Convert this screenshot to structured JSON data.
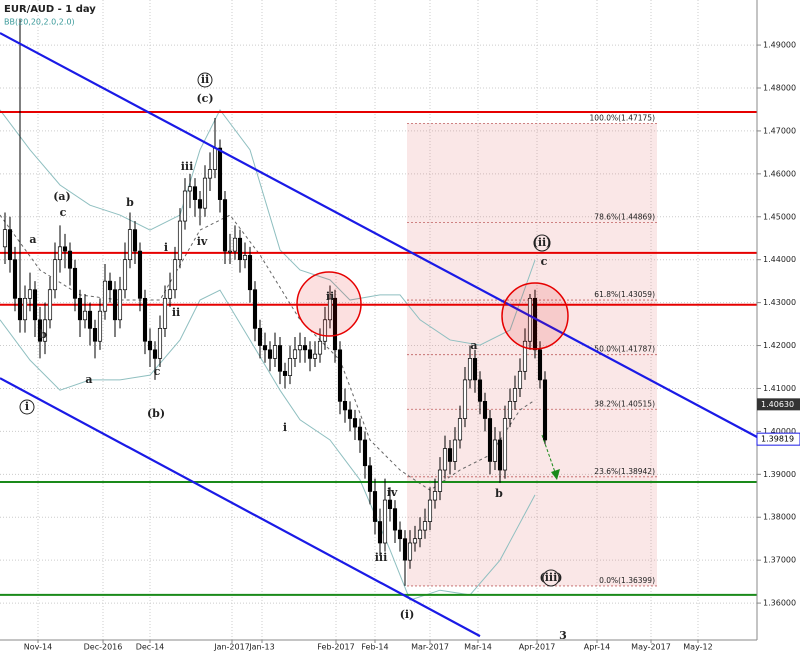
{
  "chart_data": {
    "type": "candlestick",
    "title": "EUR/AUD - 1 day",
    "subtitle": "BB(20,20,2.0,2.0)",
    "xlim": [
      0,
      151.4
    ],
    "ylim": [
      1.3514,
      1.5005
    ],
    "yticks": [
      {
        "value": 1.49,
        "label": "1.49000"
      },
      {
        "value": 1.48,
        "label": "1.48000"
      },
      {
        "value": 1.47,
        "label": "1.47000"
      },
      {
        "value": 1.46,
        "label": "1.46000"
      },
      {
        "value": 1.45,
        "label": "1.45000"
      },
      {
        "value": 1.44,
        "label": "1.44000"
      },
      {
        "value": 1.43,
        "label": "1.43000"
      },
      {
        "value": 1.42,
        "label": "1.42000"
      },
      {
        "value": 1.41,
        "label": "1.41000"
      },
      {
        "value": 1.4,
        "label": "1.40000"
      },
      {
        "value": 1.39,
        "label": "1.39000"
      },
      {
        "value": 1.38,
        "label": "1.38000"
      },
      {
        "value": 1.37,
        "label": "1.37000"
      },
      {
        "value": 1.36,
        "label": "1.36000"
      }
    ],
    "xticks": [
      {
        "value": 7.6,
        "label": "Nov-14"
      },
      {
        "value": 20.6,
        "label": "Dec-2016"
      },
      {
        "value": 30,
        "label": "Dec-14"
      },
      {
        "value": 46.4,
        "label": "Jan-2017"
      },
      {
        "value": 52.4,
        "label": "Jan-13"
      },
      {
        "value": 67.2,
        "label": "Feb-2017"
      },
      {
        "value": 75,
        "label": "Feb-14"
      },
      {
        "value": 86,
        "label": "Mar-2017"
      },
      {
        "value": 95.6,
        "label": "Mar-14"
      },
      {
        "value": 107.4,
        "label": "Apr-2017"
      },
      {
        "value": 119.4,
        "label": "Apr-14"
      },
      {
        "value": 130.2,
        "label": "May-2017"
      },
      {
        "value": 139.6,
        "label": "May-12"
      }
    ],
    "grid": true,
    "series": [
      {
        "name": "EUR/AUD",
        "x": [
          1,
          2,
          3,
          4,
          5,
          6,
          7,
          8,
          9,
          10,
          11,
          12,
          13,
          14,
          15,
          16,
          17,
          18,
          19,
          20,
          21,
          22,
          23,
          24,
          25,
          26,
          27,
          28,
          29,
          30,
          31,
          32,
          33,
          34,
          35,
          36,
          37,
          38,
          39,
          40,
          41,
          42,
          43,
          44,
          45,
          46,
          47,
          48,
          49,
          50,
          51,
          52,
          53,
          54,
          55,
          56,
          57,
          58,
          59,
          60,
          61,
          62,
          63,
          64,
          65,
          66,
          67,
          68,
          69,
          70,
          71,
          72,
          73,
          74,
          75,
          76,
          77,
          78,
          79,
          80,
          81,
          82,
          83,
          84,
          85,
          86,
          87,
          88,
          89,
          90,
          91,
          92,
          93,
          94,
          95,
          96,
          97,
          98,
          99,
          100,
          101,
          102,
          103,
          104,
          105,
          106,
          107,
          108,
          109
        ],
        "ohlc": [
          [
            1.443,
            1.451,
            1.439,
            1.447
          ],
          [
            1.447,
            1.45,
            1.437,
            1.44
          ],
          [
            1.44,
            1.443,
            1.428,
            1.431
          ],
          [
            1.431,
            1.496,
            1.423,
            1.426
          ],
          [
            1.426,
            1.434,
            1.423,
            1.431
          ],
          [
            1.431,
            1.437,
            1.428,
            1.433
          ],
          [
            1.433,
            1.435,
            1.422,
            1.426
          ],
          [
            1.426,
            1.429,
            1.417,
            1.421
          ],
          [
            1.421,
            1.43,
            1.418,
            1.426
          ],
          [
            1.426,
            1.436,
            1.424,
            1.433
          ],
          [
            1.433,
            1.444,
            1.431,
            1.44
          ],
          [
            1.44,
            1.448,
            1.437,
            1.443
          ],
          [
            1.443,
            1.446,
            1.438,
            1.442
          ],
          [
            1.442,
            1.444,
            1.434,
            1.438
          ],
          [
            1.438,
            1.44,
            1.428,
            1.431
          ],
          [
            1.431,
            1.433,
            1.422,
            1.426
          ],
          [
            1.426,
            1.432,
            1.424,
            1.428
          ],
          [
            1.428,
            1.43,
            1.42,
            1.424
          ],
          [
            1.424,
            1.426,
            1.417,
            1.421
          ],
          [
            1.421,
            1.431,
            1.419,
            1.428
          ],
          [
            1.428,
            1.439,
            1.426,
            1.435
          ],
          [
            1.435,
            1.437,
            1.43,
            1.433
          ],
          [
            1.433,
            1.435,
            1.422,
            1.426
          ],
          [
            1.426,
            1.436,
            1.424,
            1.433
          ],
          [
            1.433,
            1.444,
            1.431,
            1.44
          ],
          [
            1.44,
            1.451,
            1.438,
            1.447
          ],
          [
            1.447,
            1.449,
            1.439,
            1.442
          ],
          [
            1.442,
            1.444,
            1.428,
            1.431
          ],
          [
            1.431,
            1.433,
            1.418,
            1.421
          ],
          [
            1.421,
            1.424,
            1.415,
            1.419
          ],
          [
            1.419,
            1.421,
            1.412,
            1.417
          ],
          [
            1.417,
            1.427,
            1.415,
            1.424
          ],
          [
            1.424,
            1.434,
            1.422,
            1.431
          ],
          [
            1.431,
            1.437,
            1.429,
            1.433
          ],
          [
            1.433,
            1.443,
            1.431,
            1.44
          ],
          [
            1.44,
            1.452,
            1.438,
            1.449
          ],
          [
            1.449,
            1.459,
            1.447,
            1.456
          ],
          [
            1.456,
            1.46,
            1.452,
            1.457
          ],
          [
            1.457,
            1.459,
            1.45,
            1.454
          ],
          [
            1.454,
            1.456,
            1.448,
            1.452
          ],
          [
            1.452,
            1.462,
            1.45,
            1.459
          ],
          [
            1.459,
            1.465,
            1.456,
            1.461
          ],
          [
            1.461,
            1.473,
            1.459,
            1.466
          ],
          [
            1.466,
            1.468,
            1.451,
            1.454
          ],
          [
            1.454,
            1.456,
            1.439,
            1.442
          ],
          [
            1.442,
            1.446,
            1.439,
            1.442
          ],
          [
            1.442,
            1.448,
            1.44,
            1.445
          ],
          [
            1.445,
            1.447,
            1.437,
            1.44
          ],
          [
            1.44,
            1.444,
            1.438,
            1.441
          ],
          [
            1.441,
            1.443,
            1.43,
            1.433
          ],
          [
            1.433,
            1.435,
            1.421,
            1.424
          ],
          [
            1.424,
            1.426,
            1.417,
            1.42
          ],
          [
            1.42,
            1.423,
            1.416,
            1.419
          ],
          [
            1.419,
            1.421,
            1.414,
            1.417
          ],
          [
            1.417,
            1.423,
            1.415,
            1.42
          ],
          [
            1.42,
            1.422,
            1.411,
            1.414
          ],
          [
            1.414,
            1.416,
            1.41,
            1.413
          ],
          [
            1.413,
            1.42,
            1.411,
            1.417
          ],
          [
            1.417,
            1.422,
            1.415,
            1.419
          ],
          [
            1.419,
            1.423,
            1.416,
            1.42
          ],
          [
            1.42,
            1.422,
            1.416,
            1.419
          ],
          [
            1.419,
            1.421,
            1.414,
            1.417
          ],
          [
            1.417,
            1.421,
            1.415,
            1.418
          ],
          [
            1.418,
            1.424,
            1.416,
            1.421
          ],
          [
            1.421,
            1.429,
            1.419,
            1.426
          ],
          [
            1.426,
            1.434,
            1.424,
            1.431
          ],
          [
            1.431,
            1.433,
            1.416,
            1.419
          ],
          [
            1.419,
            1.421,
            1.404,
            1.407
          ],
          [
            1.407,
            1.41,
            1.402,
            1.405
          ],
          [
            1.405,
            1.407,
            1.4,
            1.403
          ],
          [
            1.403,
            1.405,
            1.398,
            1.401
          ],
          [
            1.401,
            1.403,
            1.395,
            1.398
          ],
          [
            1.398,
            1.4,
            1.389,
            1.392
          ],
          [
            1.392,
            1.394,
            1.383,
            1.386
          ],
          [
            1.386,
            1.389,
            1.376,
            1.379
          ],
          [
            1.379,
            1.382,
            1.371,
            1.374
          ],
          [
            1.374,
            1.389,
            1.372,
            1.384
          ],
          [
            1.384,
            1.387,
            1.379,
            1.382
          ],
          [
            1.382,
            1.384,
            1.374,
            1.377
          ],
          [
            1.377,
            1.379,
            1.372,
            1.375
          ],
          [
            1.375,
            1.377,
            1.364,
            1.37
          ],
          [
            1.37,
            1.377,
            1.368,
            1.374
          ],
          [
            1.374,
            1.378,
            1.372,
            1.375
          ],
          [
            1.375,
            1.38,
            1.373,
            1.377
          ],
          [
            1.377,
            1.382,
            1.375,
            1.379
          ],
          [
            1.379,
            1.387,
            1.377,
            1.384
          ],
          [
            1.384,
            1.389,
            1.382,
            1.386
          ],
          [
            1.386,
            1.394,
            1.384,
            1.391
          ],
          [
            1.391,
            1.399,
            1.389,
            1.396
          ],
          [
            1.396,
            1.398,
            1.39,
            1.393
          ],
          [
            1.393,
            1.401,
            1.391,
            1.398
          ],
          [
            1.398,
            1.406,
            1.396,
            1.403
          ],
          [
            1.403,
            1.415,
            1.401,
            1.412
          ],
          [
            1.412,
            1.42,
            1.41,
            1.417
          ],
          [
            1.417,
            1.419,
            1.409,
            1.412
          ],
          [
            1.412,
            1.414,
            1.404,
            1.407
          ],
          [
            1.407,
            1.409,
            1.4,
            1.403
          ],
          [
            1.403,
            1.405,
            1.39,
            1.393
          ],
          [
            1.393,
            1.401,
            1.391,
            1.398
          ],
          [
            1.398,
            1.4,
            1.388,
            1.391
          ],
          [
            1.391,
            1.406,
            1.389,
            1.403
          ],
          [
            1.403,
            1.41,
            1.401,
            1.407
          ],
          [
            1.407,
            1.413,
            1.405,
            1.41
          ],
          [
            1.41,
            1.417,
            1.408,
            1.414
          ],
          [
            1.414,
            1.424,
            1.412,
            1.421
          ],
          [
            1.421,
            1.432,
            1.419,
            1.431
          ],
          [
            1.431,
            1.433,
            1.417,
            1.419
          ],
          [
            1.419,
            1.421,
            1.41,
            1.412
          ],
          [
            1.412,
            1.414,
            1.397,
            1.398
          ]
        ]
      }
    ],
    "bands": [
      {
        "color": "#8fbfc0",
        "dash": false,
        "x": [
          0,
          6,
          12,
          18,
          24,
          30,
          36,
          40,
          44,
          50,
          56,
          60,
          66,
          70,
          76,
          80,
          84,
          90,
          96,
          102,
          107
        ],
        "values": [
          1.4749,
          1.4656,
          1.4574,
          1.4527,
          1.4504,
          1.4469,
          1.4504,
          1.4656,
          1.4749,
          1.4656,
          1.4423,
          1.4376,
          1.4353,
          1.4306,
          1.4318,
          1.4318,
          1.426,
          1.4213,
          1.4201,
          1.4236,
          1.4399
        ]
      },
      {
        "color": "#8fbfc0",
        "dash": false,
        "x": [
          0,
          6,
          12,
          18,
          24,
          30,
          36,
          40,
          44,
          50,
          56,
          60,
          66,
          72,
          78,
          82,
          88,
          94,
          100,
          107
        ],
        "values": [
          1.426,
          1.4166,
          1.4096,
          1.412,
          1.412,
          1.4131,
          1.4213,
          1.4306,
          1.4329,
          1.4213,
          1.4096,
          1.4027,
          1.398,
          1.3887,
          1.3724,
          1.3607,
          1.363,
          1.3619,
          1.37,
          1.3852
        ]
      },
      {
        "color": "#666666",
        "dash": true,
        "x": [
          0,
          8,
          16,
          24,
          32,
          40,
          46,
          52,
          60,
          68,
          74,
          80,
          86,
          92,
          98,
          104,
          107
        ],
        "values": [
          1.4504,
          1.4376,
          1.4318,
          1.4306,
          1.4306,
          1.4469,
          1.4504,
          1.4411,
          1.426,
          1.4166,
          1.398,
          1.391,
          1.3863,
          1.391,
          1.3945,
          1.405,
          1.4073
        ]
      }
    ],
    "channels": [
      {
        "color": "#1a1ae6",
        "x": [
          0,
          151.4
        ],
        "values": [
          1.4928,
          1.3987
        ]
      },
      {
        "color": "#1a1ae6",
        "x": [
          0,
          96
        ],
        "values": [
          1.4124,
          1.3523
        ]
      }
    ],
    "levels": [
      {
        "color": "#e60000",
        "value": 1.4744
      },
      {
        "color": "#e60000",
        "value": 1.4416
      },
      {
        "color": "#e60000",
        "value": 1.4295
      },
      {
        "color": "#1a8a1a",
        "value": 1.3882
      },
      {
        "color": "#1a8a1a",
        "value": 1.3619
      }
    ],
    "fib_xlim": [
      81.4,
      131.4
    ],
    "fib": [
      {
        "value": 1.47175,
        "label": "100.0%(1.47175)"
      },
      {
        "value": 1.44869,
        "label": "78.6%(1.44869)"
      },
      {
        "value": 1.43059,
        "label": "61.8%(1.43059)"
      },
      {
        "value": 1.41787,
        "label": "50.0%(1.41787)"
      },
      {
        "value": 1.40515,
        "label": "38.2%(1.40515)"
      },
      {
        "value": 1.38942,
        "label": "23.6%(1.38942)"
      },
      {
        "value": 1.36399,
        "label": "0.0%(1.36399)"
      }
    ],
    "price_labels": [
      {
        "value": 1.4063,
        "label": "1.40630"
      },
      {
        "value": 1.39819,
        "label": "1.39819"
      }
    ],
    "annotations": [
      "ii",
      "(c)",
      "iii",
      "(a)",
      "c",
      "b",
      "iv",
      "a",
      "i",
      "ii",
      "b",
      "a",
      "c",
      "(b)",
      "i",
      "ii",
      "i",
      "iv",
      "iii",
      "(i)",
      "a",
      "b",
      "(ii)",
      "c",
      "(iii)",
      "3"
    ]
  }
}
